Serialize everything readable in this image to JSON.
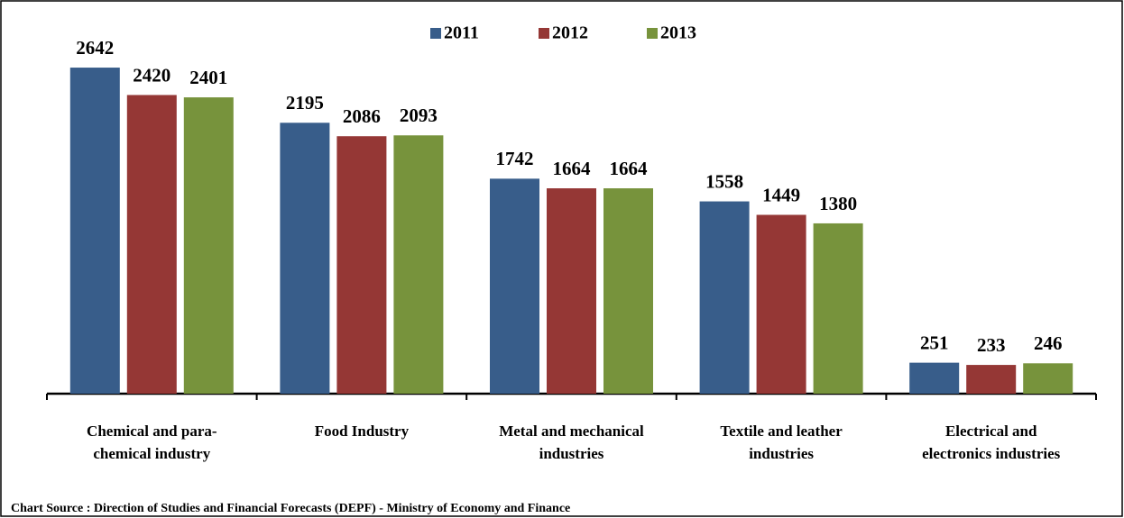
{
  "chart_data": {
    "type": "bar",
    "categories": [
      "Chemical and para-\nchemical industry",
      "Food Industry",
      "Metal and mechanical\nindustries",
      "Textile and leather\nindustries",
      "Electrical and\nelectronics industries"
    ],
    "series": [
      {
        "name": "2011",
        "color": "#385d8a",
        "values": [
          2642,
          2195,
          1742,
          1558,
          251
        ]
      },
      {
        "name": "2012",
        "color": "#953735",
        "values": [
          2420,
          2086,
          1664,
          1449,
          233
        ]
      },
      {
        "name": "2013",
        "color": "#77933c",
        "values": [
          2401,
          2093,
          1664,
          1380,
          246
        ]
      }
    ],
    "ylim": [
      0,
      3000
    ],
    "legend": "top",
    "source": "Chart Source : Direction of Studies and Financial Forecasts (DEPF) - Ministry of Economy and Finance"
  }
}
